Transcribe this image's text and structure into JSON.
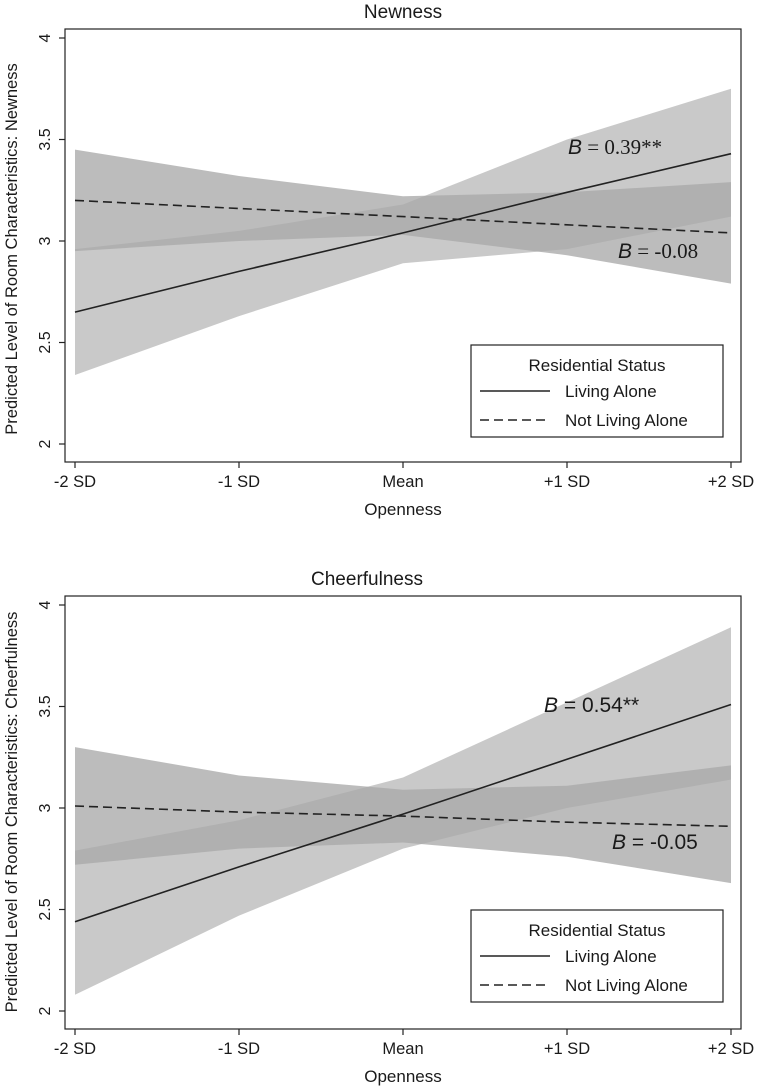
{
  "chart_data": [
    {
      "type": "line",
      "title": "Newness",
      "xlabel": "Openness",
      "ylabel": "Predicted Level of Room Characteristics: Newness",
      "categories": [
        "-2 SD",
        "-1 SD",
        "Mean",
        "+1 SD",
        "+2 SD"
      ],
      "ylim": [
        2,
        4
      ],
      "yticks": [
        2,
        2.5,
        3,
        3.5,
        4
      ],
      "series": [
        {
          "name": "Living Alone",
          "style": "solid",
          "values": [
            2.65,
            2.85,
            3.04,
            3.24,
            3.43
          ],
          "ci_lower": [
            2.34,
            2.63,
            2.89,
            2.96,
            3.12
          ],
          "ci_upper": [
            2.96,
            3.05,
            3.18,
            3.5,
            3.75
          ]
        },
        {
          "name": "Not Living Alone",
          "style": "dashed",
          "values": [
            3.2,
            3.16,
            3.12,
            3.08,
            3.04
          ],
          "ci_lower": [
            2.95,
            3.0,
            3.03,
            2.93,
            2.79
          ],
          "ci_upper": [
            3.45,
            3.32,
            3.22,
            3.24,
            3.29
          ]
        }
      ],
      "annotations": [
        {
          "italic": "B",
          "text": " = 0.39**",
          "series": "Living Alone"
        },
        {
          "italic": "B",
          "text": " = -0.08",
          "series": "Not Living Alone"
        }
      ],
      "legend": {
        "title": "Residential Status",
        "position": "bottom-right"
      }
    },
    {
      "type": "line",
      "title": "Cheerfulness",
      "xlabel": "Openness",
      "ylabel": "Predicted Level of Room Characteristics: Cheerfulness",
      "categories": [
        "-2 SD",
        "-1 SD",
        "Mean",
        "+1 SD",
        "+2 SD"
      ],
      "ylim": [
        2,
        4
      ],
      "yticks": [
        2,
        2.5,
        3,
        3.5,
        4
      ],
      "series": [
        {
          "name": "Living Alone",
          "style": "solid",
          "values": [
            2.44,
            2.71,
            2.97,
            3.24,
            3.51
          ],
          "ci_lower": [
            2.08,
            2.47,
            2.8,
            3.0,
            3.14
          ],
          "ci_upper": [
            2.79,
            2.94,
            3.15,
            3.52,
            3.89
          ]
        },
        {
          "name": "Not Living Alone",
          "style": "dashed",
          "values": [
            3.01,
            2.98,
            2.96,
            2.93,
            2.91
          ],
          "ci_lower": [
            2.72,
            2.8,
            2.83,
            2.76,
            2.63
          ],
          "ci_upper": [
            3.3,
            3.16,
            3.09,
            3.11,
            3.21
          ]
        }
      ],
      "annotations": [
        {
          "italic": "B",
          "text": " = 0.54**",
          "series": "Living Alone"
        },
        {
          "italic": "B",
          "text": " = -0.05",
          "series": "Not Living Alone"
        }
      ],
      "legend": {
        "title": "Residential Status",
        "position": "bottom-right"
      }
    }
  ],
  "colors": {
    "band_living_alone": "#c9c9c9",
    "band_not_living_alone": "#a9a9a9",
    "line": "#222222",
    "background": "#ffffff"
  }
}
